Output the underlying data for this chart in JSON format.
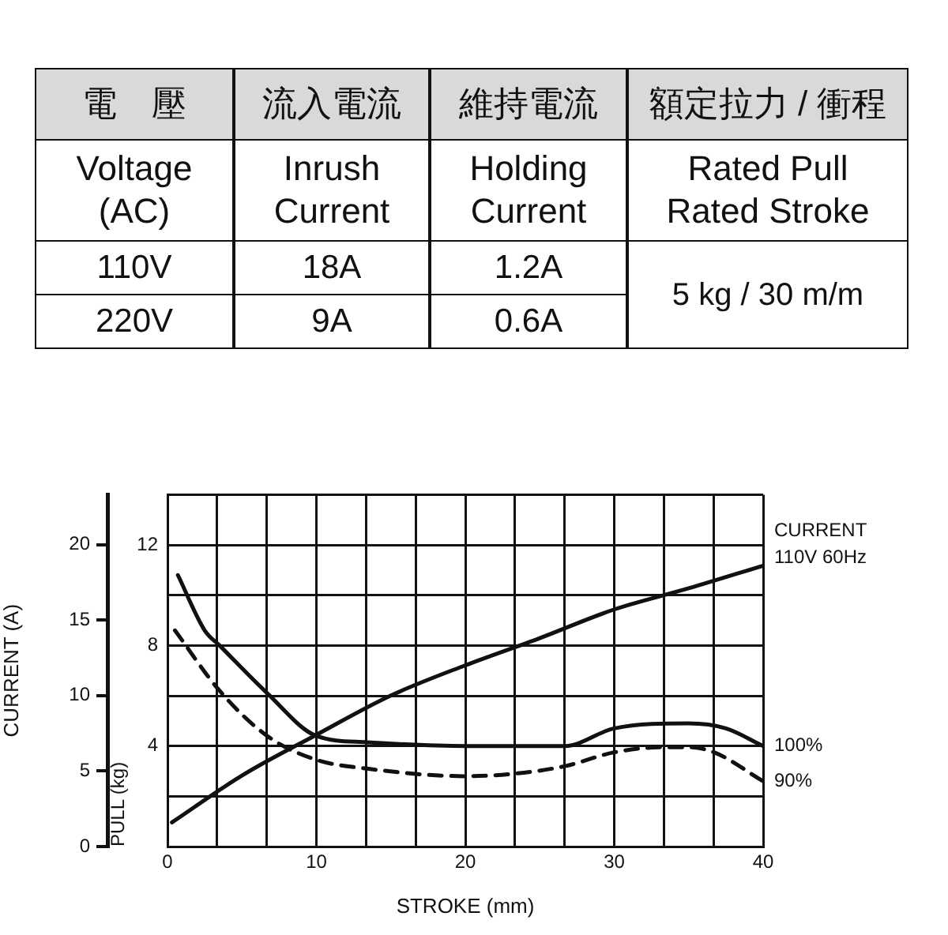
{
  "chart_data": [
    {
      "type": "other",
      "annotations": [
        "電　壓",
        "流入電流",
        "維持電流",
        "額定拉力 / 衝程",
        "Voltage\n(AC)",
        "Inrush\nCurrent",
        "Holding\nCurrent",
        "Rated Pull\nRated Stroke",
        "110V",
        "18A",
        "1.2A",
        "220V",
        "9A",
        "0.6A",
        "5 kg / 30 m/m"
      ]
    },
    {
      "type": "line",
      "xlabel": "STROKE (mm)",
      "ylabel": "PULL (kg)",
      "y2label": "CURRENT (A)",
      "xlim": [
        0,
        40
      ],
      "xticks": [
        0,
        {
          "value": 3.33,
          "label": null
        },
        {
          "value": 6.67,
          "label": null
        },
        10,
        {
          "value": 13.33,
          "label": null
        },
        {
          "value": 16.67,
          "label": null
        },
        20,
        {
          "value": 23.33,
          "label": null
        },
        {
          "value": 26.67,
          "label": null
        },
        30,
        {
          "value": 33.33,
          "label": null
        },
        {
          "value": 36.67,
          "label": null
        },
        40
      ],
      "ylim": [
        0,
        14
      ],
      "yticks": [
        {
          "value": 0,
          "label": null
        },
        {
          "value": 2,
          "label": null
        },
        4,
        {
          "value": 6,
          "label": null
        },
        8,
        {
          "value": 10,
          "label": null
        },
        12,
        {
          "value": 14,
          "label": null
        }
      ],
      "y2lim": [
        0,
        23.3
      ],
      "y2ticks": [
        0,
        5,
        10,
        15,
        20
      ],
      "grid": true,
      "legend": false,
      "marker": "none",
      "series": [
        {
          "name": "CURRENT 110V 60Hz",
          "color": "#111111",
          "axis": "y2",
          "line_style": "solid",
          "x": [
            0.3,
            5,
            10,
            15,
            20,
            25,
            30,
            35,
            40
          ],
          "values": [
            1.6,
            4.7,
            7.4,
            10.0,
            12.0,
            13.8,
            15.7,
            17.1,
            18.6
          ]
        },
        {
          "name": "100%",
          "color": "#111111",
          "line_style": "solid",
          "x": [
            0.7,
            2.5,
            3.5,
            6.7,
            10,
            13.4,
            20,
            26.7,
            30,
            35,
            37.5,
            40
          ],
          "values": [
            10.8,
            8.6,
            8,
            6.1,
            4.4,
            4.15,
            4.0,
            4.0,
            4.7,
            4.9,
            4.7,
            4.0
          ]
        },
        {
          "name": "90%",
          "color": "#111111",
          "line_style": "dashed",
          "x": [
            0.5,
            3.5,
            6.7,
            10,
            13.4,
            20,
            23.3,
            26.7,
            30,
            33.3,
            35,
            36.7,
            40
          ],
          "values": [
            8.6,
            6.2,
            4.4,
            3.45,
            3.1,
            2.8,
            2.9,
            3.2,
            3.75,
            3.95,
            3.95,
            3.75,
            2.6
          ]
        }
      ]
    }
  ]
}
